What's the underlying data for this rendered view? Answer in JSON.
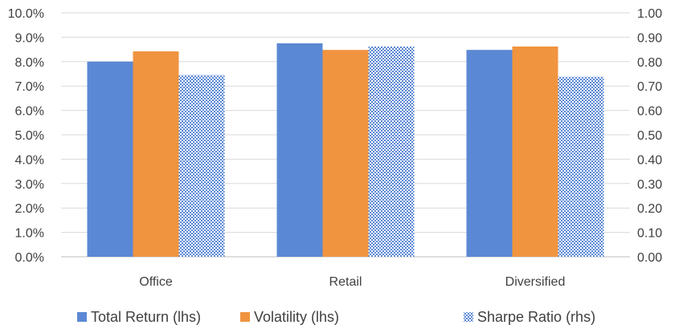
{
  "chart_data": {
    "type": "bar",
    "title": "",
    "xlabel": "",
    "ylabel": "",
    "categories": [
      "Office",
      "Retail",
      "Diversified"
    ],
    "series": [
      {
        "name": "Total Return (lhs)",
        "axis": "left",
        "values": [
          8.0,
          8.75,
          8.48
        ],
        "color": "#5b88d4",
        "fill": "solid"
      },
      {
        "name": "Volatility (lhs)",
        "axis": "left",
        "values": [
          8.42,
          8.48,
          8.62
        ],
        "color": "#f0943f",
        "fill": "solid"
      },
      {
        "name": "Sharpe Ratio (rhs)",
        "axis": "right",
        "values": [
          0.745,
          0.862,
          0.738
        ],
        "color": "#5b88d4",
        "fill": "pattern"
      }
    ],
    "ylim_left": [
      0,
      10
    ],
    "ylim_right": [
      0,
      1
    ],
    "yticks_left": [
      "0.0%",
      "1.0%",
      "2.0%",
      "3.0%",
      "4.0%",
      "5.0%",
      "6.0%",
      "7.0%",
      "8.0%",
      "9.0%",
      "10.0%"
    ],
    "yticks_right": [
      "0.00",
      "0.10",
      "0.20",
      "0.30",
      "0.40",
      "0.50",
      "0.60",
      "0.70",
      "0.80",
      "0.90",
      "1.00"
    ],
    "grid": true,
    "legend_position": "bottom"
  }
}
